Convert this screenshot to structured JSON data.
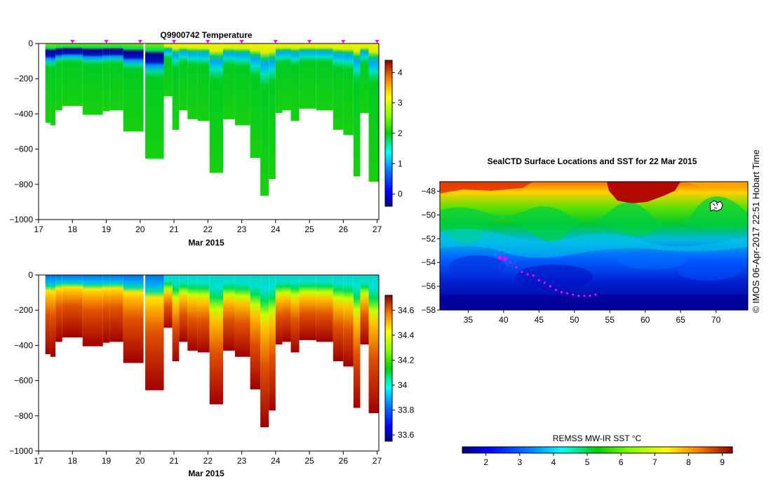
{
  "chart_data": [
    {
      "type": "heatmap",
      "title": "Q9900742  Temperature",
      "xlabel": "Mar 2015",
      "ylabel": "",
      "x_ticks": [
        "17",
        "18",
        "19",
        "20",
        "21",
        "22",
        "23",
        "24",
        "25",
        "26",
        "27"
      ],
      "y_ticks": [
        "0",
        "−200",
        "−400",
        "−600",
        "−800",
        "−1000"
      ],
      "xlim": [
        17,
        27.05
      ],
      "ylim": [
        -1000,
        0
      ],
      "colorbar": {
        "ticks": [
          "0",
          "1",
          "2",
          "3",
          "4"
        ],
        "range": [
          -0.4,
          4.4
        ]
      },
      "profile_markers_x": [
        18,
        19,
        20,
        21,
        22,
        23,
        24,
        25,
        26,
        27
      ],
      "profiles": [
        {
          "x0": 17.2,
          "x1": 17.35,
          "depth": 450
        },
        {
          "x0": 17.35,
          "x1": 17.5,
          "depth": 465
        },
        {
          "x0": 17.5,
          "x1": 17.7,
          "depth": 380
        },
        {
          "x0": 17.7,
          "x1": 18.3,
          "depth": 355
        },
        {
          "x0": 18.3,
          "x1": 18.9,
          "depth": 405
        },
        {
          "x0": 18.9,
          "x1": 19.1,
          "depth": 385
        },
        {
          "x0": 19.1,
          "x1": 19.5,
          "depth": 380
        },
        {
          "x0": 19.5,
          "x1": 20.1,
          "depth": 500
        },
        {
          "x0": 20.15,
          "x1": 20.7,
          "depth": 655
        },
        {
          "x0": 20.7,
          "x1": 20.95,
          "depth": 300
        },
        {
          "x0": 20.95,
          "x1": 21.15,
          "depth": 490
        },
        {
          "x0": 21.15,
          "x1": 21.4,
          "depth": 380
        },
        {
          "x0": 21.4,
          "x1": 21.7,
          "depth": 430
        },
        {
          "x0": 21.7,
          "x1": 22.05,
          "depth": 440
        },
        {
          "x0": 22.05,
          "x1": 22.45,
          "depth": 735
        },
        {
          "x0": 22.45,
          "x1": 22.8,
          "depth": 430
        },
        {
          "x0": 22.8,
          "x1": 23.25,
          "depth": 465
        },
        {
          "x0": 23.25,
          "x1": 23.55,
          "depth": 650
        },
        {
          "x0": 23.55,
          "x1": 23.8,
          "depth": 865
        },
        {
          "x0": 23.8,
          "x1": 24.0,
          "depth": 770
        },
        {
          "x0": 24.0,
          "x1": 24.2,
          "depth": 395
        },
        {
          "x0": 24.2,
          "x1": 24.45,
          "depth": 380
        },
        {
          "x0": 24.45,
          "x1": 24.7,
          "depth": 440
        },
        {
          "x0": 24.7,
          "x1": 25.2,
          "depth": 370
        },
        {
          "x0": 25.2,
          "x1": 25.7,
          "depth": 380
        },
        {
          "x0": 25.7,
          "x1": 26.0,
          "depth": 490
        },
        {
          "x0": 26.0,
          "x1": 26.3,
          "depth": 520
        },
        {
          "x0": 26.3,
          "x1": 26.5,
          "depth": 755
        },
        {
          "x0": 26.5,
          "x1": 26.75,
          "depth": 395
        },
        {
          "x0": 26.75,
          "x1": 27.05,
          "depth": 785
        }
      ]
    },
    {
      "type": "heatmap",
      "title": "",
      "xlabel": "Mar 2015",
      "ylabel": "",
      "x_ticks": [
        "17",
        "18",
        "19",
        "20",
        "21",
        "22",
        "23",
        "24",
        "25",
        "26",
        "27"
      ],
      "y_ticks": [
        "0",
        "−200",
        "−400",
        "−600",
        "−800",
        "−1000"
      ],
      "xlim": [
        17,
        27.05
      ],
      "ylim": [
        -1000,
        0
      ],
      "colorbar": {
        "ticks": [
          "33.6",
          "33.8",
          "34",
          "34.2",
          "34.4",
          "34.6"
        ],
        "range": [
          33.55,
          34.72
        ]
      }
    },
    {
      "type": "heatmap",
      "title": "SealCTD Surface Locations and SST for 22 Mar 2015",
      "x_ticks": [
        "35",
        "40",
        "45",
        "50",
        "55",
        "60",
        "65",
        "70"
      ],
      "y_ticks": [
        "−48",
        "−50",
        "−52",
        "−54",
        "−56",
        "−58"
      ],
      "xlim": [
        31,
        74.5
      ],
      "ylim": [
        -58,
        -47.2
      ],
      "colorbar": {
        "label": "REMSS MW-IR SST °C",
        "ticks": [
          "2",
          "3",
          "4",
          "5",
          "6",
          "7",
          "8",
          "9"
        ],
        "range": [
          1.3,
          9.3
        ]
      },
      "track_points": [
        [
          39.5,
          -53.6
        ],
        [
          40.2,
          -53.7
        ],
        [
          41.0,
          -54.0
        ],
        [
          41.8,
          -54.4
        ],
        [
          42.6,
          -54.8
        ],
        [
          43.4,
          -55.0
        ],
        [
          44.2,
          -55.1
        ],
        [
          45.0,
          -55.5
        ],
        [
          45.8,
          -55.7
        ],
        [
          46.6,
          -56.0
        ],
        [
          47.4,
          -56.3
        ],
        [
          48.2,
          -56.5
        ],
        [
          49.0,
          -56.6
        ],
        [
          49.8,
          -56.7
        ],
        [
          50.6,
          -56.8
        ],
        [
          51.4,
          -56.8
        ],
        [
          52.2,
          -56.8
        ],
        [
          53.0,
          -56.7
        ]
      ]
    }
  ],
  "copyright": "©  IMOS 06-Apr-2017 22:51 Hobart Time",
  "colors": {
    "profile_marker": "#ff00ff",
    "track": "#ff00ff"
  }
}
